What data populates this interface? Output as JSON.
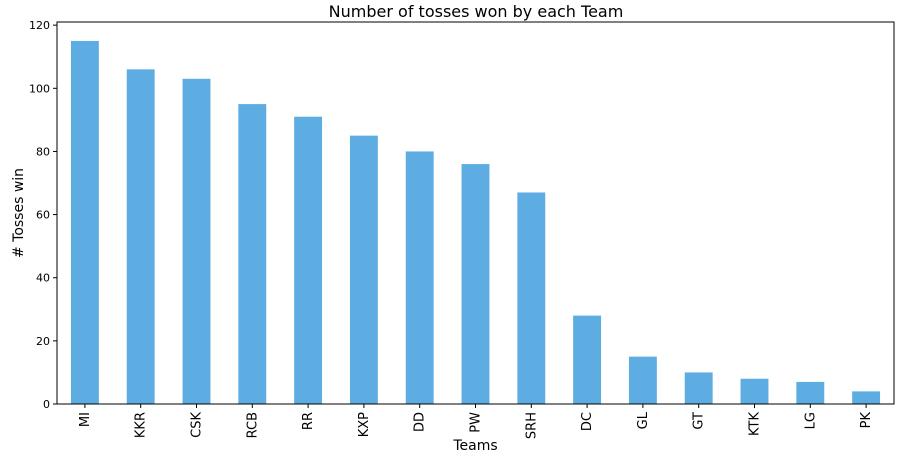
{
  "chart_data": {
    "type": "bar",
    "title": "Number of tosses won by each Team",
    "xlabel": "Teams",
    "ylabel": "# Tosses win",
    "categories": [
      "MI",
      "KKR",
      "CSK",
      "RCB",
      "RR",
      "KXP",
      "DD",
      "PW",
      "SRH",
      "DC",
      "GL",
      "GT",
      "KTK",
      "LG",
      "PK"
    ],
    "values": [
      115,
      106,
      103,
      95,
      91,
      85,
      80,
      76,
      67,
      28,
      15,
      10,
      8,
      7,
      4
    ],
    "yticks": [
      0,
      20,
      40,
      60,
      80,
      100,
      120
    ],
    "ylim": [
      0,
      121
    ],
    "bar_color": "#5dade2",
    "grid": false,
    "legend": "none"
  }
}
